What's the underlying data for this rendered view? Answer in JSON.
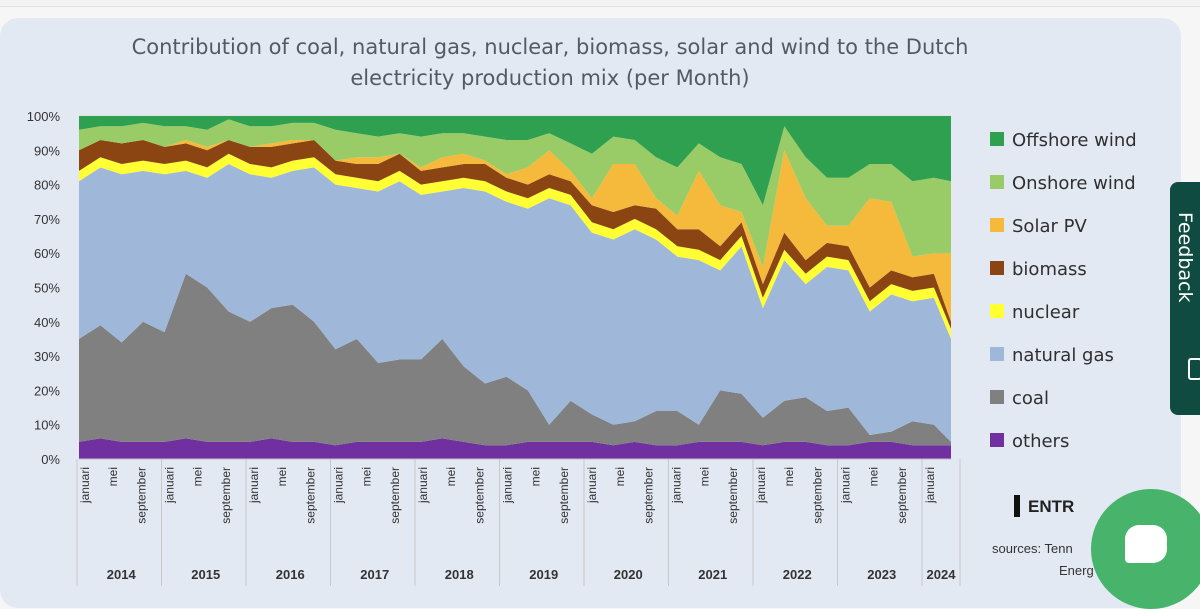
{
  "feedback": {
    "label": "Feedback"
  },
  "sources": {
    "text": "sources: Tenn",
    "text2": "Energ"
  },
  "logo": {
    "text": "ENTR"
  },
  "chart_data": {
    "type": "area",
    "stacked": true,
    "title": "Contribution of coal, natural gas, nuclear, biomass, solar and wind to the Dutch",
    "title_line2": "electricity production mix (per Month)",
    "ylim": [
      0,
      100
    ],
    "yticks": [
      "0%",
      "10%",
      "20%",
      "30%",
      "40%",
      "50%",
      "60%",
      "70%",
      "80%",
      "90%",
      "100%"
    ],
    "month_labels": [
      "januari",
      "mei",
      "september"
    ],
    "years": [
      "2014",
      "2015",
      "2016",
      "2017",
      "2018",
      "2019",
      "2020",
      "2021",
      "2022",
      "2023",
      "2024"
    ],
    "legend_position": "right",
    "x": [
      2014.0,
      2014.25,
      2014.5,
      2014.75,
      2015.0,
      2015.25,
      2015.5,
      2015.75,
      2016.0,
      2016.25,
      2016.5,
      2016.75,
      2017.0,
      2017.25,
      2017.5,
      2017.75,
      2018.0,
      2018.25,
      2018.5,
      2018.75,
      2019.0,
      2019.25,
      2019.5,
      2019.75,
      2020.0,
      2020.25,
      2020.5,
      2020.75,
      2021.0,
      2021.25,
      2021.5,
      2021.75,
      2022.0,
      2022.25,
      2022.5,
      2022.75,
      2023.0,
      2023.25,
      2023.5,
      2023.75,
      2024.0,
      2024.2
    ],
    "series": [
      {
        "name": "others",
        "color": "#7030a0",
        "values": [
          5,
          6,
          5,
          5,
          5,
          6,
          5,
          5,
          5,
          6,
          5,
          5,
          4,
          5,
          5,
          5,
          5,
          6,
          5,
          4,
          4,
          5,
          5,
          5,
          5,
          4,
          5,
          4,
          4,
          5,
          5,
          5,
          4,
          5,
          5,
          4,
          4,
          5,
          5,
          4,
          4,
          4
        ]
      },
      {
        "name": "coal",
        "color": "#808080",
        "values": [
          30,
          33,
          29,
          35,
          32,
          48,
          45,
          38,
          35,
          38,
          40,
          35,
          28,
          30,
          23,
          24,
          24,
          29,
          22,
          18,
          20,
          15,
          5,
          12,
          8,
          6,
          6,
          10,
          10,
          5,
          15,
          14,
          8,
          12,
          13,
          10,
          11,
          2,
          3,
          7,
          6,
          1
        ]
      },
      {
        "name": "natural gas",
        "color": "#9fb8d9",
        "values": [
          46,
          46,
          49,
          44,
          46,
          30,
          32,
          43,
          43,
          38,
          39,
          45,
          48,
          44,
          50,
          52,
          48,
          43,
          52,
          56,
          51,
          53,
          66,
          57,
          53,
          54,
          56,
          50,
          45,
          48,
          35,
          43,
          32,
          41,
          33,
          42,
          40,
          36,
          40,
          35,
          37,
          30
        ]
      },
      {
        "name": "nuclear",
        "color": "#ffff33",
        "values": [
          3,
          3,
          3,
          3,
          3,
          3,
          3,
          3,
          3,
          3,
          3,
          3,
          3,
          3,
          3,
          3,
          3,
          3,
          3,
          3,
          3,
          3,
          3,
          3,
          3,
          3,
          3,
          3,
          3,
          3,
          3,
          3,
          3,
          3,
          3,
          3,
          3,
          3,
          3,
          3,
          3,
          3
        ]
      },
      {
        "name": "biomass",
        "color": "#8b4513",
        "values": [
          6,
          5,
          6,
          6,
          5,
          5,
          5,
          4,
          5,
          6,
          5,
          5,
          4,
          4,
          5,
          5,
          4,
          4,
          4,
          5,
          4,
          4,
          4,
          4,
          5,
          5,
          4,
          6,
          5,
          6,
          4,
          4,
          4,
          5,
          4,
          4,
          4,
          4,
          4,
          4,
          4,
          2
        ]
      },
      {
        "name": "Solar PV",
        "color": "#f5b93c",
        "values": [
          0,
          0,
          0,
          0,
          0,
          1,
          1,
          0,
          0,
          1,
          1,
          0,
          0,
          2,
          2,
          0,
          1,
          3,
          3,
          1,
          1,
          5,
          7,
          3,
          2,
          14,
          12,
          3,
          4,
          17,
          12,
          3,
          5,
          24,
          18,
          5,
          6,
          26,
          20,
          6,
          6,
          20
        ]
      },
      {
        "name": "Onshore wind",
        "color": "#99cc66",
        "values": [
          6,
          4,
          5,
          5,
          6,
          4,
          5,
          6,
          6,
          5,
          5,
          5,
          9,
          7,
          6,
          6,
          9,
          7,
          6,
          7,
          10,
          8,
          5,
          8,
          13,
          8,
          7,
          12,
          14,
          8,
          14,
          14,
          18,
          7,
          12,
          14,
          14,
          10,
          11,
          22,
          22,
          21
        ]
      },
      {
        "name": "Offshore wind",
        "color": "#2fa050",
        "values": [
          4,
          3,
          3,
          2,
          3,
          3,
          4,
          1,
          3,
          3,
          2,
          2,
          4,
          5,
          6,
          5,
          6,
          5,
          5,
          6,
          7,
          7,
          5,
          8,
          11,
          6,
          7,
          12,
          15,
          8,
          12,
          14,
          26,
          8,
          12,
          18,
          18,
          14,
          14,
          19,
          18,
          19
        ]
      }
    ],
    "legend_order": [
      "Offshore wind",
      "Onshore wind",
      "Solar PV",
      "biomass",
      "nuclear",
      "natural gas",
      "coal",
      "others"
    ]
  }
}
